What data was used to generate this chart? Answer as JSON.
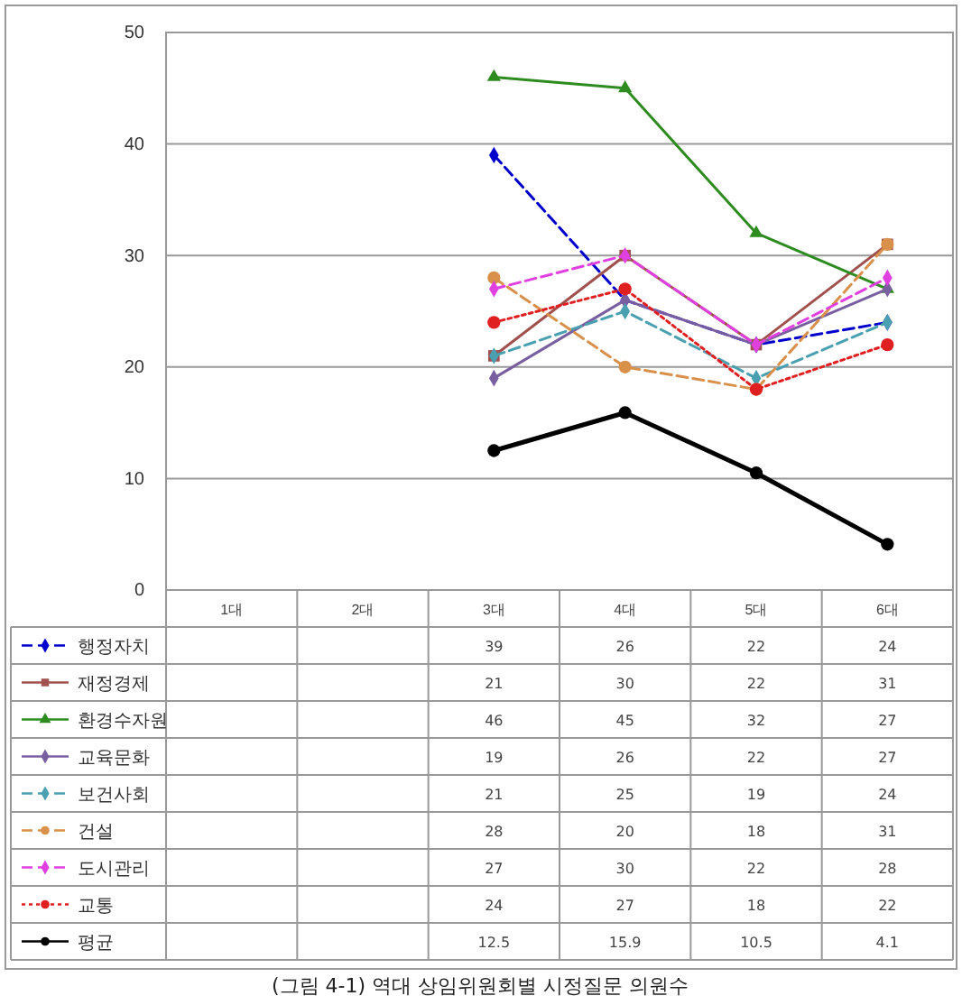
{
  "chart_data": {
    "type": "line",
    "categories": [
      "1대",
      "2대",
      "3대",
      "4대",
      "5대",
      "6대"
    ],
    "ylim": [
      0,
      50
    ],
    "yticks": [
      0,
      10,
      20,
      30,
      40,
      50
    ],
    "grid": "y",
    "legend": "bottom",
    "data_labels": true,
    "series": [
      {
        "name": "행정자치",
        "color": "#0000cc",
        "line_style": "dashed",
        "marker": "diamond",
        "values": [
          null,
          null,
          39,
          26,
          22,
          24
        ]
      },
      {
        "name": "재정경제",
        "color": "#a0504d",
        "line_style": "solid",
        "marker": "square",
        "values": [
          null,
          null,
          21,
          30,
          22,
          31
        ]
      },
      {
        "name": "환경수자원",
        "color": "#2e8b20",
        "line_style": "solid",
        "marker": "triangle",
        "values": [
          null,
          null,
          46,
          45,
          32,
          27
        ]
      },
      {
        "name": "교육문화",
        "color": "#7a5fa0",
        "line_style": "solid",
        "marker": "diamond",
        "values": [
          null,
          null,
          19,
          26,
          22,
          27
        ]
      },
      {
        "name": "보건사회",
        "color": "#4aa0b0",
        "line_style": "dashed",
        "marker": "diamond",
        "values": [
          null,
          null,
          21,
          25,
          19,
          24
        ]
      },
      {
        "name": "건설",
        "color": "#d9904a",
        "line_style": "dashed",
        "marker": "circle",
        "values": [
          null,
          null,
          28,
          20,
          18,
          31
        ]
      },
      {
        "name": "도시관리",
        "color": "#e040e0",
        "line_style": "dashed",
        "marker": "diamond",
        "values": [
          null,
          null,
          27,
          30,
          22,
          28
        ]
      },
      {
        "name": "교통",
        "color": "#e02020",
        "line_style": "dotted",
        "marker": "circle",
        "values": [
          null,
          null,
          24,
          27,
          18,
          22
        ]
      },
      {
        "name": "평균",
        "color": "#000000",
        "line_style": "solid",
        "marker": "circle",
        "values": [
          null,
          null,
          12.5,
          15.9,
          10.5,
          4.1
        ]
      }
    ],
    "annotations": [
      "(그림 4-1) 역대 상임위원회별 시정질문 의원수"
    ]
  }
}
